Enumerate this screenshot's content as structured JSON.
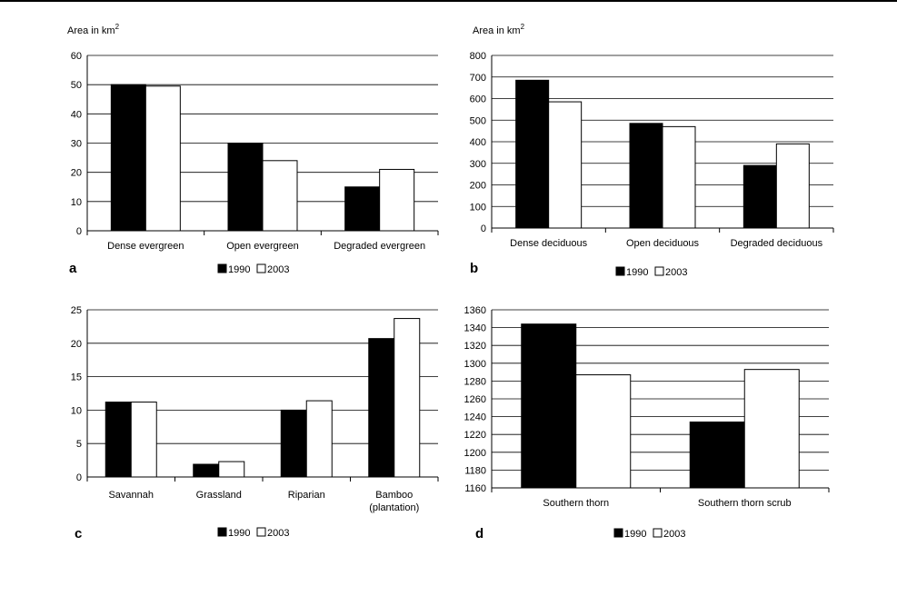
{
  "chart_data": [
    {
      "id": "a",
      "type": "bar",
      "panel_label": "a",
      "ylabel": "Area in km",
      "ylabel_sup": "2",
      "ylim": [
        0,
        60
      ],
      "yticks": [
        0,
        10,
        20,
        30,
        40,
        50,
        60
      ],
      "grid": true,
      "categories": [
        [
          "Dense evergreen"
        ],
        [
          "Open evergreen"
        ],
        [
          "Degraded evergreen"
        ]
      ],
      "series": [
        {
          "name": "1990",
          "values": [
            50,
            30,
            15
          ],
          "color": "#000000"
        },
        {
          "name": "2003",
          "values": [
            49.5,
            24,
            21
          ],
          "color": "#ffffff"
        }
      ],
      "legend": "bottom"
    },
    {
      "id": "b",
      "type": "bar",
      "panel_label": "b",
      "ylabel": "Area in km",
      "ylabel_sup": "2",
      "ylim": [
        0,
        800
      ],
      "yticks": [
        0,
        100,
        200,
        300,
        400,
        500,
        600,
        700,
        800
      ],
      "grid": true,
      "categories": [
        [
          "Dense deciduous"
        ],
        [
          "Open deciduous"
        ],
        [
          "Degraded deciduous"
        ]
      ],
      "series": [
        {
          "name": "1990",
          "values": [
            685,
            485,
            290
          ],
          "color": "#000000"
        },
        {
          "name": "2003",
          "values": [
            585,
            470,
            390
          ],
          "color": "#ffffff"
        }
      ],
      "legend": "bottom"
    },
    {
      "id": "c",
      "type": "bar",
      "panel_label": "c",
      "ylabel": "",
      "ylabel_sup": "",
      "ylim": [
        0,
        25
      ],
      "yticks": [
        0,
        5,
        10,
        15,
        20,
        25
      ],
      "grid": true,
      "categories": [
        [
          "Savannah"
        ],
        [
          "Grassland"
        ],
        [
          "Riparian"
        ],
        [
          "Bamboo",
          "(plantation)"
        ]
      ],
      "series": [
        {
          "name": "1990",
          "values": [
            11.2,
            1.9,
            10,
            20.7
          ],
          "color": "#000000"
        },
        {
          "name": "2003",
          "values": [
            11.2,
            2.3,
            11.4,
            23.7
          ],
          "color": "#ffffff"
        }
      ],
      "legend": "bottom"
    },
    {
      "id": "d",
      "type": "bar",
      "panel_label": "d",
      "ylabel": "",
      "ylabel_sup": "",
      "ylim": [
        1160,
        1360
      ],
      "yticks": [
        1160,
        1180,
        1200,
        1220,
        1240,
        1260,
        1280,
        1300,
        1320,
        1340,
        1360
      ],
      "grid": true,
      "categories": [
        [
          "Southern thorn"
        ],
        [
          "Southern thorn scrub"
        ]
      ],
      "series": [
        {
          "name": "1990",
          "values": [
            1344,
            1234
          ],
          "color": "#000000"
        },
        {
          "name": "2003",
          "values": [
            1287,
            1293
          ],
          "color": "#ffffff"
        }
      ],
      "legend": "bottom"
    }
  ]
}
